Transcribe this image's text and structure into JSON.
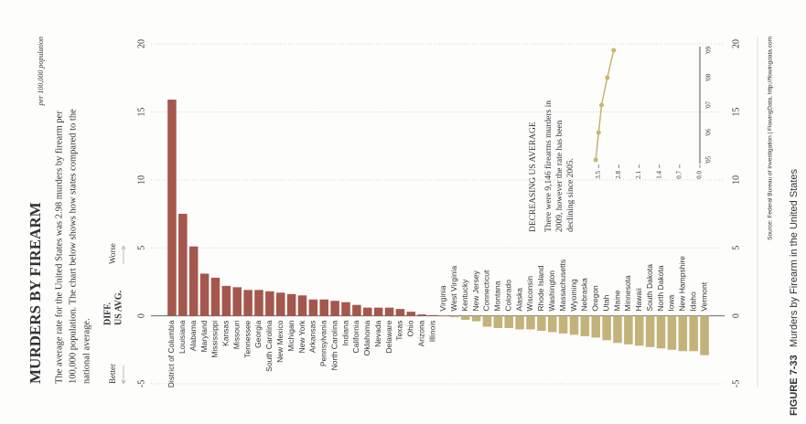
{
  "chart_data": [
    {
      "type": "bar",
      "orientation": "horizontal",
      "title": "MURDERS BY FIREARM",
      "subtitle": [
        "The average rate for the United States was 2.98 murders by firearm per",
        "100,000 population. The chart below shows how states compared to the",
        "national average."
      ],
      "axis_title": [
        "DIFF.",
        "US AVG."
      ],
      "left_label": "Better",
      "right_label": "Worse",
      "unit_label": "per 100,000 population",
      "categories": [
        "District of Columbia",
        "Louisiana",
        "Alabama",
        "Maryland",
        "Mississippi",
        "Kansas",
        "Missouri",
        "Tennessee",
        "Georgia",
        "South Carolina",
        "New Mexico",
        "Michigan",
        "New York",
        "Arkansas",
        "Pennsylvania",
        "North Carolina",
        "Indiana",
        "California",
        "Oklahoma",
        "Nevada",
        "Delaware",
        "Texas",
        "Ohio",
        "Arizona",
        "Illinois",
        "Virginia",
        "West Virginia",
        "Kentucky",
        "New Jersey",
        "Connecticut",
        "Montana",
        "Colorado",
        "Alaska",
        "Wisconsin",
        "Rhode Island",
        "Washington",
        "Massachusetts",
        "Wyoming",
        "Nebraska",
        "Oregon",
        "Utah",
        "Maine",
        "Minnesota",
        "Hawaii",
        "South Dakota",
        "North Dakota",
        "Iowa",
        "New Hampshire",
        "Idaho",
        "Vermont"
      ],
      "values": [
        15.9,
        7.5,
        5.1,
        3.1,
        2.8,
        2.2,
        2.1,
        1.9,
        1.9,
        1.8,
        1.7,
        1.6,
        1.5,
        1.2,
        1.2,
        1.1,
        1.0,
        0.8,
        0.6,
        0.6,
        0.6,
        0.5,
        0.3,
        0.1,
        0.05,
        -0.05,
        -0.1,
        -0.3,
        -0.4,
        -0.8,
        -0.9,
        -0.9,
        -1.0,
        -1.0,
        -1.1,
        -1.2,
        -1.3,
        -1.4,
        -1.5,
        -1.6,
        -1.8,
        -2.0,
        -2.1,
        -2.2,
        -2.3,
        -2.4,
        -2.5,
        -2.6,
        -2.6,
        -2.9
      ],
      "colors": {
        "positive": "#a4574c",
        "negative": "#c3b27a"
      },
      "xlim": [
        -5.5,
        20.5
      ],
      "xticks": [
        -5,
        0,
        5,
        10,
        15,
        20
      ],
      "grid": true,
      "source": "Source: Federal Bureau of Investigation | FlowingData, http://flowingdata.com"
    },
    {
      "type": "line",
      "title": "DECREASING US AVERAGE",
      "text": [
        "There were 9,146 firearms murders in",
        "2009, however the rate has been",
        "declining since 2005."
      ],
      "categories": [
        "'05",
        "'06",
        "'07",
        "'08",
        "'09"
      ],
      "values": [
        3.6,
        3.5,
        3.4,
        3.2,
        2.98
      ],
      "color": "#c8b46e",
      "ylim": [
        0,
        3.7
      ],
      "yticks": [
        {
          "value": 0,
          "label": "0.0"
        },
        0.7,
        1.4,
        2.1,
        2.8,
        3.5
      ]
    }
  ],
  "caption": {
    "label": "FIGURE 7-33",
    "text": "Murders by Firearm in the United States"
  }
}
